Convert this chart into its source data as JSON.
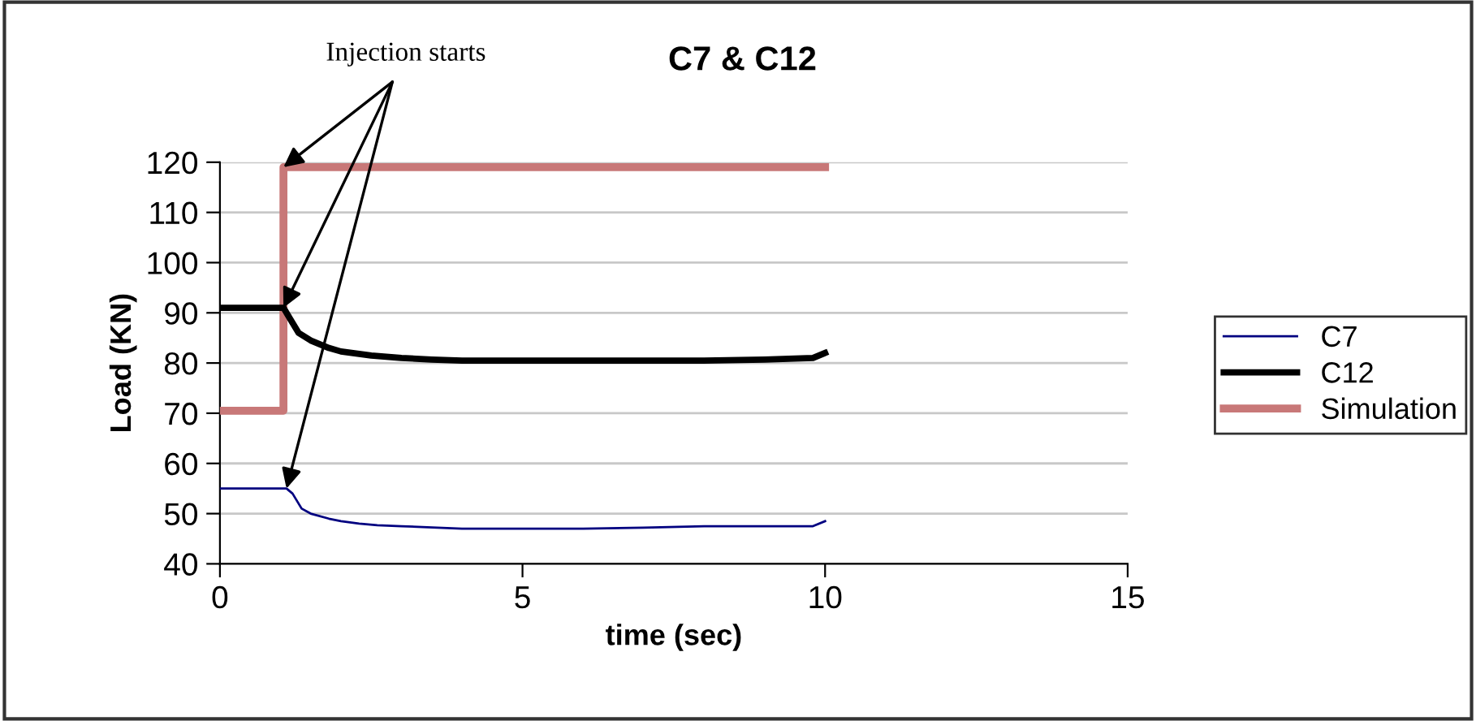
{
  "chart_data": {
    "type": "line",
    "title": "C7 & C12",
    "xlabel": "time (sec)",
    "ylabel": "Load (KN)",
    "annotations": [
      {
        "text": "Injection starts",
        "x": 1.05,
        "y": 119
      }
    ],
    "xlim": [
      0,
      15
    ],
    "xticks": [
      0,
      5,
      10,
      15
    ],
    "ylim": [
      40,
      120
    ],
    "yticks": [
      40,
      50,
      60,
      70,
      80,
      90,
      100,
      110,
      120
    ],
    "grid": "y",
    "legend": "right",
    "line_style": "solid",
    "marker": "none",
    "series": [
      {
        "name": "C7",
        "color": "#000080",
        "x": [
          0,
          0.5,
          1.0,
          1.1,
          1.2,
          1.35,
          1.5,
          1.8,
          2.0,
          2.3,
          2.6,
          3.0,
          4.0,
          5.0,
          6.0,
          7.0,
          8.0,
          9.0,
          9.8,
          10.0
        ],
        "values": [
          55,
          55,
          55,
          55,
          54,
          51,
          50,
          49,
          48.5,
          48,
          47.7,
          47.5,
          47,
          47,
          47,
          47.2,
          47.5,
          47.5,
          47.5,
          48.5
        ]
      },
      {
        "name": "C12",
        "color": "#000000",
        "x": [
          0,
          0.5,
          1.0,
          1.05,
          1.15,
          1.3,
          1.5,
          1.8,
          2.0,
          2.5,
          3.0,
          3.5,
          4.0,
          5.0,
          6.0,
          7.0,
          8.0,
          9.0,
          9.8,
          10.0
        ],
        "values": [
          91,
          91,
          91,
          91,
          89,
          86,
          84.5,
          83,
          82.3,
          81.5,
          81,
          80.7,
          80.5,
          80.5,
          80.5,
          80.5,
          80.5,
          80.7,
          81,
          82
        ]
      },
      {
        "name": "Simulation",
        "color": "#c87878",
        "x": [
          0,
          1.05,
          1.05,
          10.0
        ],
        "values": [
          70.5,
          70.5,
          119,
          119
        ]
      }
    ]
  }
}
